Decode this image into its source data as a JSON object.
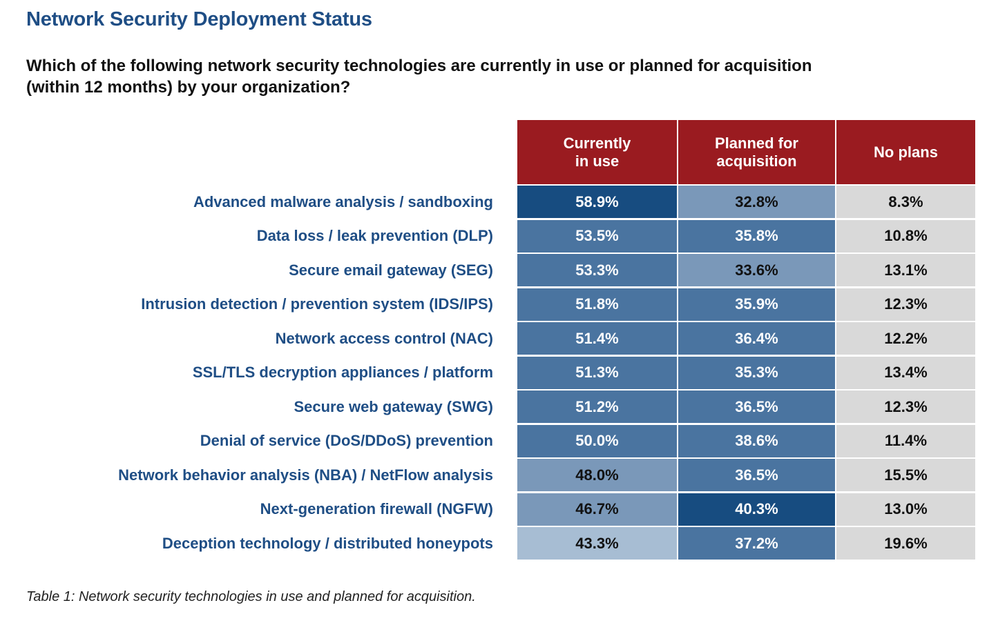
{
  "title": "Network Security Deployment Status",
  "question_lines": [
    "Which of the following network security technologies are currently in use or planned for acquisition",
    "(within 12 months) by your organization?"
  ],
  "caption": "Table 1: Network security technologies in use and planned for acquisition.",
  "colors": {
    "header": "#9a1b20",
    "dark": "#174c80",
    "medium": "#4a74a0",
    "light": "#7a98b9",
    "lightest": "#a7bdd3",
    "neutral": "#d9d9d9",
    "label": "#1f4e85"
  },
  "chart_data": {
    "type": "table",
    "title": "Network Security Deployment Status",
    "columns": [
      {
        "key": "in_use",
        "label_lines": [
          "Currently",
          "in use"
        ]
      },
      {
        "key": "planned",
        "label_lines": [
          "Planned for",
          "acquisition"
        ]
      },
      {
        "key": "no_plans",
        "label_lines": [
          "No plans"
        ]
      }
    ],
    "rows": [
      {
        "label": "Advanced malware analysis / sandboxing",
        "values": [
          "58.9%",
          "32.8%",
          "8.3%"
        ],
        "shades": [
          "dark",
          "light",
          "neutral"
        ]
      },
      {
        "label": "Data loss / leak prevention (DLP)",
        "values": [
          "53.5%",
          "35.8%",
          "10.8%"
        ],
        "shades": [
          "medium",
          "medium",
          "neutral"
        ]
      },
      {
        "label": "Secure email gateway (SEG)",
        "values": [
          "53.3%",
          "33.6%",
          "13.1%"
        ],
        "shades": [
          "medium",
          "light",
          "neutral"
        ]
      },
      {
        "label": "Intrusion detection / prevention system (IDS/IPS)",
        "values": [
          "51.8%",
          "35.9%",
          "12.3%"
        ],
        "shades": [
          "medium",
          "medium",
          "neutral"
        ]
      },
      {
        "label": "Network access control (NAC)",
        "values": [
          "51.4%",
          "36.4%",
          "12.2%"
        ],
        "shades": [
          "medium",
          "medium",
          "neutral"
        ]
      },
      {
        "label": "SSL/TLS decryption appliances / platform",
        "values": [
          "51.3%",
          "35.3%",
          "13.4%"
        ],
        "shades": [
          "medium",
          "medium",
          "neutral"
        ]
      },
      {
        "label": "Secure web gateway (SWG)",
        "values": [
          "51.2%",
          "36.5%",
          "12.3%"
        ],
        "shades": [
          "medium",
          "medium",
          "neutral"
        ]
      },
      {
        "label": "Denial of service (DoS/DDoS) prevention",
        "values": [
          "50.0%",
          "38.6%",
          "11.4%"
        ],
        "shades": [
          "medium",
          "medium",
          "neutral"
        ]
      },
      {
        "label": "Network behavior analysis (NBA) / NetFlow analysis",
        "values": [
          "48.0%",
          "36.5%",
          "15.5%"
        ],
        "shades": [
          "light",
          "medium",
          "neutral"
        ]
      },
      {
        "label": "Next-generation firewall (NGFW)",
        "values": [
          "46.7%",
          "40.3%",
          "13.0%"
        ],
        "shades": [
          "light",
          "dark",
          "neutral"
        ]
      },
      {
        "label": "Deception technology / distributed honeypots",
        "values": [
          "43.3%",
          "37.2%",
          "19.6%"
        ],
        "shades": [
          "lightest",
          "medium",
          "neutral"
        ]
      }
    ]
  }
}
